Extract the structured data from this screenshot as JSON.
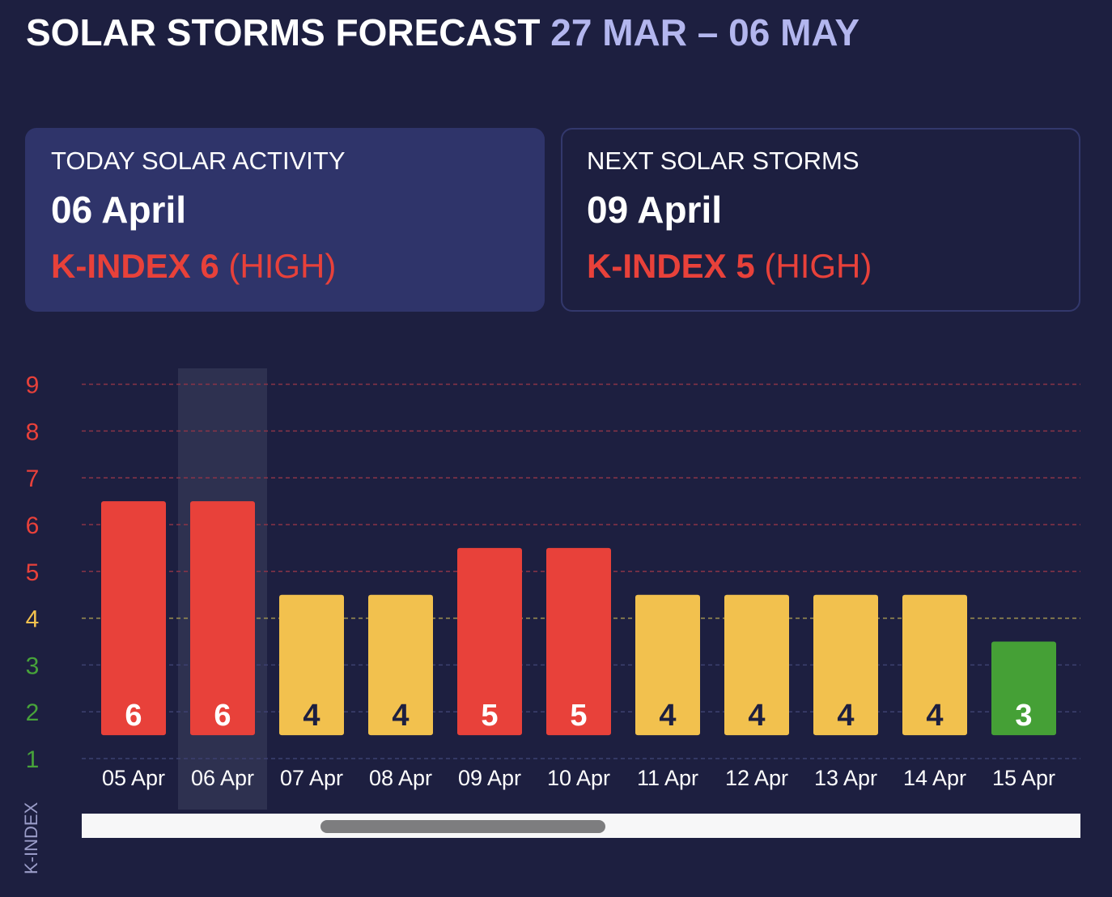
{
  "header": {
    "title": "SOLAR STORMS FORECAST",
    "range": "27 MAR – 06 MAY"
  },
  "cards": {
    "today": {
      "label": "TODAY SOLAR ACTIVITY",
      "date": "06 April",
      "kindex_prefix": "K-INDEX",
      "kindex_value": "6",
      "kindex_level": "(HIGH)"
    },
    "next": {
      "label": "NEXT SOLAR STORMS",
      "date": "09 April",
      "kindex_prefix": "K-INDEX",
      "kindex_value": "5",
      "kindex_level": "(HIGH)"
    }
  },
  "colors": {
    "background": "#1d1f40",
    "high": "#e8413a",
    "moderate": "#f2c14e",
    "low": "#45a036",
    "highlight_column": "#2e3150",
    "axis_low": "#47a33a"
  },
  "chart_data": {
    "type": "bar",
    "ylabel": "K-INDEX",
    "ylim": [
      1,
      9
    ],
    "yticks": [
      1,
      2,
      3,
      4,
      5,
      6,
      7,
      8,
      9
    ],
    "categories": [
      "05 Apr",
      "06 Apr",
      "07 Apr",
      "08 Apr",
      "09 Apr",
      "10 Apr",
      "11 Apr",
      "12 Apr",
      "13 Apr",
      "14 Apr",
      "15 Apr"
    ],
    "values": [
      6,
      6,
      4,
      4,
      5,
      5,
      4,
      4,
      4,
      4,
      3
    ],
    "highlighted_category": "06 Apr",
    "grid": true
  },
  "scrollbar": {
    "visible": true
  }
}
